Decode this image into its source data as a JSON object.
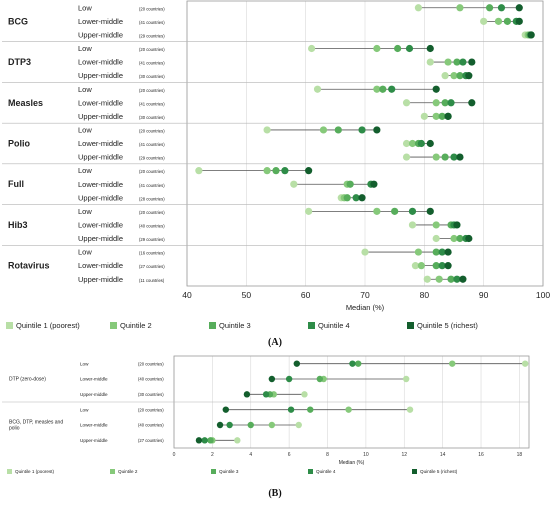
{
  "colors": {
    "q1": "#b8dfa6",
    "q2": "#86c97a",
    "q3": "#57ad5b",
    "q4": "#2e8c48",
    "q5": "#135e2d"
  },
  "chart_data": [
    {
      "type": "dot",
      "panel_label": "(A)",
      "xlabel": "Median (%)",
      "xlim": [
        40,
        100
      ],
      "xticks": [
        40,
        50,
        60,
        70,
        80,
        90,
        100
      ],
      "grid": true,
      "legend_position": "bottom",
      "legend": [
        "Quintile 1 (poorest)",
        "Quintile 2",
        "Quintile 3",
        "Quintile 4",
        "Quintile 5 (richest)"
      ],
      "groups": [
        {
          "name": "BCG",
          "rows": [
            {
              "level": "Low",
              "count": "(20 countries)",
              "values": [
                79,
                86,
                91,
                93,
                96
              ]
            },
            {
              "level": "Lower-middle",
              "count": "(41 countries)",
              "values": [
                90,
                92.5,
                94,
                95.5,
                96
              ]
            },
            {
              "level": "Upper-middle",
              "count": "(29 countries)",
              "values": [
                97,
                97.5,
                97.8,
                98,
                98
              ]
            }
          ]
        },
        {
          "name": "DTP3",
          "rows": [
            {
              "level": "Low",
              "count": "(20 countries)",
              "values": [
                61,
                72,
                75.5,
                77.5,
                81
              ]
            },
            {
              "level": "Lower-middle",
              "count": "(41 countries)",
              "values": [
                81,
                84,
                85.5,
                86.5,
                88
              ]
            },
            {
              "level": "Upper-middle",
              "count": "(30 countries)",
              "values": [
                83.5,
                85,
                86,
                87,
                87.5
              ]
            }
          ]
        },
        {
          "name": "Measles",
          "rows": [
            {
              "level": "Low",
              "count": "(20 countries)",
              "values": [
                62,
                72,
                73,
                74.5,
                82
              ]
            },
            {
              "level": "Lower-middle",
              "count": "(41 countries)",
              "values": [
                77,
                82,
                83.5,
                84.5,
                88
              ]
            },
            {
              "level": "Upper-middle",
              "count": "(30 countries)",
              "values": [
                80,
                82,
                83,
                84,
                84
              ]
            }
          ]
        },
        {
          "name": "Polio",
          "rows": [
            {
              "level": "Low",
              "count": "(20 countries)",
              "values": [
                53.5,
                63,
                65.5,
                69.5,
                72
              ]
            },
            {
              "level": "Lower-middle",
              "count": "(41 countries)",
              "values": [
                77,
                78,
                79,
                79.5,
                81
              ]
            },
            {
              "level": "Upper-middle",
              "count": "(29 countries)",
              "values": [
                77,
                82,
                83.5,
                85,
                86
              ]
            }
          ]
        },
        {
          "name": "Full",
          "rows": [
            {
              "level": "Low",
              "count": "(20 countries)",
              "values": [
                42,
                53.5,
                55,
                56.5,
                60.5
              ]
            },
            {
              "level": "Lower-middle",
              "count": "(41 countries)",
              "values": [
                58,
                67,
                67.5,
                71,
                71.5
              ]
            },
            {
              "level": "Upper-middle",
              "count": "(28 countries)",
              "values": [
                66,
                66.5,
                67,
                68.5,
                69.5
              ]
            }
          ]
        },
        {
          "name": "Hib3",
          "rows": [
            {
              "level": "Low",
              "count": "(20 countries)",
              "values": [
                60.5,
                72,
                75,
                78,
                81
              ]
            },
            {
              "level": "Lower-middle",
              "count": "(40 countries)",
              "values": [
                78,
                82,
                84.5,
                85,
                85.5
              ]
            },
            {
              "level": "Upper-middle",
              "count": "(29 countries)",
              "values": [
                82,
                85,
                86,
                87,
                87.5
              ]
            }
          ]
        },
        {
          "name": "Rotavirus",
          "rows": [
            {
              "level": "Low",
              "count": "(16 countries)",
              "values": [
                70,
                79,
                82,
                83,
                84
              ]
            },
            {
              "level": "Lower-middle",
              "count": "(27 countries)",
              "values": [
                78.5,
                79.5,
                82,
                83,
                84
              ]
            },
            {
              "level": "Upper-middle",
              "count": "(11 countries)",
              "values": [
                80.5,
                82.5,
                84.5,
                85.5,
                86.5
              ]
            }
          ]
        }
      ]
    },
    {
      "type": "dot",
      "panel_label": "(B)",
      "xlabel": "Median (%)",
      "xlim": [
        0,
        18.5
      ],
      "xticks": [
        0,
        2,
        4,
        6,
        8,
        10,
        12,
        14,
        16,
        18
      ],
      "grid": true,
      "legend_position": "bottom",
      "legend": [
        "Quintile 1 (poorest)",
        "Quintile 2",
        "Quintile 3",
        "Quintile 4",
        "Quintile 5 (richest)"
      ],
      "groups": [
        {
          "name": "DTP (zero-dose)",
          "rows": [
            {
              "level": "Low",
              "count": "(20 countries)",
              "values": [
                18.3,
                14.5,
                9.6,
                9.3,
                6.4
              ]
            },
            {
              "level": "Lower-middle",
              "count": "(40 countries)",
              "values": [
                12.1,
                7.8,
                7.6,
                6.0,
                5.1
              ]
            },
            {
              "level": "Upper-middle",
              "count": "(30 countries)",
              "values": [
                6.8,
                5.2,
                5.0,
                4.8,
                3.8
              ]
            }
          ]
        },
        {
          "name": "BCG, DTP, measles and polio",
          "rows": [
            {
              "level": "Low",
              "count": "(20 countries)",
              "values": [
                12.3,
                9.1,
                7.1,
                6.1,
                2.7
              ]
            },
            {
              "level": "Lower-middle",
              "count": "(40 countries)",
              "values": [
                6.5,
                5.1,
                4.0,
                2.9,
                2.4
              ]
            },
            {
              "level": "Upper-middle",
              "count": "(27 countries)",
              "values": [
                3.3,
                2.0,
                1.9,
                1.6,
                1.3
              ]
            }
          ]
        }
      ]
    }
  ]
}
